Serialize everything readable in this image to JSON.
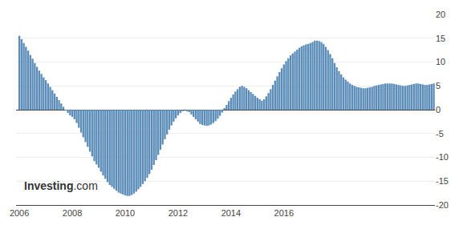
{
  "chart_data": {
    "type": "bar",
    "categories": [
      "2006",
      null,
      null,
      null,
      null,
      null,
      null,
      null,
      null,
      null,
      null,
      null,
      null,
      null,
      null,
      null,
      null,
      null,
      null,
      null,
      null,
      null,
      null,
      null,
      "2008",
      null,
      null,
      null,
      null,
      null,
      null,
      null,
      null,
      null,
      null,
      null,
      null,
      null,
      null,
      null,
      null,
      null,
      null,
      null,
      null,
      null,
      null,
      null,
      "2010",
      null,
      null,
      null,
      null,
      null,
      null,
      null,
      null,
      null,
      null,
      null,
      null,
      null,
      null,
      null,
      null,
      null,
      null,
      null,
      null,
      null,
      null,
      null,
      "2012",
      null,
      null,
      null,
      null,
      null,
      null,
      null,
      null,
      null,
      null,
      null,
      null,
      null,
      null,
      null,
      null,
      null,
      null,
      null,
      null,
      null,
      null,
      null,
      "2014",
      null,
      null,
      null,
      null,
      null,
      null,
      null,
      null,
      null,
      null,
      null,
      null,
      null,
      null,
      null,
      null,
      null,
      null,
      null,
      null,
      null,
      null,
      null,
      "2016",
      null,
      null,
      null,
      null,
      null,
      null,
      null,
      null,
      null,
      null,
      null,
      null,
      null,
      null,
      null,
      null,
      null,
      null,
      null,
      null,
      null,
      null,
      null,
      null,
      null,
      null,
      null,
      null,
      null,
      null,
      null,
      null,
      null,
      null,
      null,
      null,
      null,
      null,
      null,
      null,
      null,
      null,
      null,
      null,
      null,
      null,
      null,
      null,
      null,
      null,
      null,
      null,
      null,
      null,
      null,
      null,
      null,
      null,
      null,
      null,
      null,
      null,
      null,
      null,
      null,
      null,
      null,
      null
    ],
    "values": [
      15.5,
      14.8,
      14.0,
      13.2,
      12.4,
      11.5,
      10.7,
      9.8,
      9.0,
      8.2,
      7.5,
      6.8,
      6.2,
      5.5,
      4.8,
      4.1,
      3.4,
      2.7,
      2.0,
      1.3,
      0.6,
      -0.1,
      -0.7,
      -1.2,
      -1.5,
      -2.0,
      -2.8,
      -3.8,
      -4.8,
      -5.8,
      -6.8,
      -7.8,
      -8.8,
      -9.8,
      -10.8,
      -11.5,
      -12.2,
      -13.0,
      -13.8,
      -14.5,
      -15.2,
      -15.8,
      -16.2,
      -16.6,
      -17.0,
      -17.4,
      -17.6,
      -17.8,
      -18.0,
      -18.1,
      -18.1,
      -17.9,
      -17.6,
      -17.2,
      -16.7,
      -16.2,
      -15.6,
      -15.0,
      -14.3,
      -13.5,
      -12.6,
      -11.6,
      -10.6,
      -9.5,
      -8.4,
      -7.3,
      -6.2,
      -5.2,
      -4.2,
      -3.3,
      -2.5,
      -1.8,
      -1.2,
      -0.7,
      -0.3,
      0.0,
      -0.2,
      -0.5,
      -1.0,
      -1.5,
      -2.0,
      -2.5,
      -3.0,
      -3.2,
      -3.3,
      -3.4,
      -3.3,
      -3.1,
      -2.8,
      -2.4,
      -1.9,
      -1.3,
      -0.6,
      0.2,
      1.0,
      1.8,
      2.5,
      3.2,
      3.8,
      4.3,
      4.8,
      5.0,
      4.8,
      4.5,
      4.1,
      3.7,
      3.3,
      2.9,
      2.5,
      2.2,
      1.9,
      2.2,
      2.8,
      3.5,
      4.3,
      5.2,
      6.1,
      7.0,
      7.9,
      8.7,
      9.5,
      10.2,
      10.8,
      11.4,
      11.8,
      12.2,
      12.6,
      13.0,
      13.3,
      13.5,
      13.7,
      13.8,
      14.0,
      14.2,
      14.5,
      14.5,
      14.4,
      14.2,
      13.8,
      13.2,
      12.5,
      11.7,
      10.8,
      9.8,
      8.9,
      8.1,
      7.4,
      6.8,
      6.3,
      5.9,
      5.5,
      5.2,
      5.0,
      4.8,
      4.7,
      4.6,
      4.5,
      4.5,
      4.6,
      4.7,
      4.8,
      5.0,
      5.1,
      5.2,
      5.3,
      5.4,
      5.5,
      5.5,
      5.5,
      5.5,
      5.4,
      5.3,
      5.2,
      5.1,
      5.0,
      5.0,
      5.1,
      5.2,
      5.3,
      5.4,
      5.5,
      5.5,
      5.4,
      5.3,
      5.2,
      5.2,
      5.3,
      5.4,
      5.5
    ],
    "color": "#5b8db8",
    "ylim": [
      -20,
      20
    ],
    "yticks": [
      -20,
      -15,
      -10,
      -5,
      0,
      5,
      10,
      15,
      20
    ],
    "grid": true,
    "annotations": [
      "Investing",
      ".com"
    ]
  }
}
